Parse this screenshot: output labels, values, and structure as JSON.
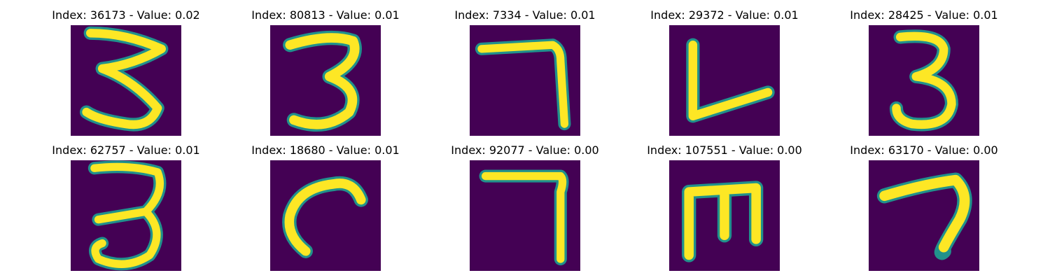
{
  "colors": {
    "background": "#440154",
    "stroke": "#fde725",
    "edge": "#21918c"
  },
  "panels": [
    {
      "title": "Index: 36173 - Value: 0.02",
      "glyph": "digit-3"
    },
    {
      "title": "Index: 80813 - Value: 0.01",
      "glyph": "digit-3"
    },
    {
      "title": "Index: 7334 - Value: 0.01",
      "glyph": "digit-7"
    },
    {
      "title": "Index: 29372 - Value: 0.01",
      "glyph": "letter-L"
    },
    {
      "title": "Index: 28425 - Value: 0.01",
      "glyph": "digit-3"
    },
    {
      "title": "Index: 62757 - Value: 0.01",
      "glyph": "digit-3"
    },
    {
      "title": "Index: 18680 - Value: 0.01",
      "glyph": "letter-c"
    },
    {
      "title": "Index: 92077 - Value: 0.00",
      "glyph": "digit-7"
    },
    {
      "title": "Index: 107551 - Value: 0.00",
      "glyph": "letter-E-rotated"
    },
    {
      "title": "Index: 63170 - Value: 0.00",
      "glyph": "digit-7"
    }
  ]
}
